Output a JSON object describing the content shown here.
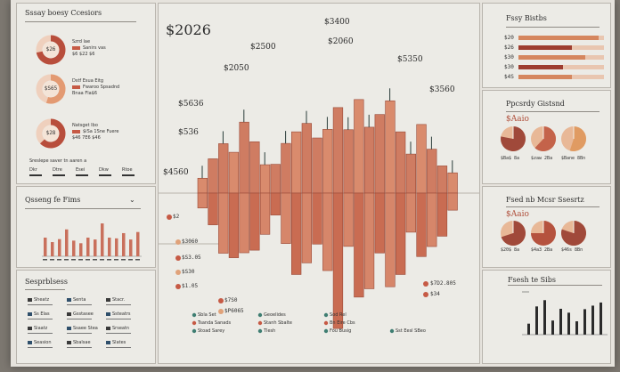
{
  "colors": {
    "accent": "#c65a45",
    "accent_dark": "#8e3a2b",
    "accent_light": "#e7a080",
    "peach": "#e9a97c",
    "teal": "#3f7e72",
    "ink": "#2b2b2b",
    "rule": "#8e8a84"
  },
  "left_top": {
    "title": "Sssay boesy Ccesiors",
    "donuts": [
      {
        "value": "$26",
        "legend": [
          "Szrd lae",
          "Sanirs vas",
          "$6 $22 $6"
        ],
        "share": 0.72,
        "color": "#b84e3c"
      },
      {
        "value": "$S65",
        "legend": [
          "Dstf Esua Eitg",
          "Fwaroo Spsadnd",
          "Bnaa Fla$6"
        ],
        "share": 0.55,
        "color": "#e39a72"
      },
      {
        "value": "$28",
        "legend": [
          "Natsget Ibo",
          "$iSa 1Sne Fuere",
          "$46 7E6 $46"
        ],
        "share": 0.63,
        "color": "#b84e3c"
      }
    ],
    "footer": "Sreslepe saver tn aaren a",
    "footer_cols": [
      "Dkr",
      "Dtre",
      "Esei",
      "Dkw",
      "Rtoe"
    ]
  },
  "left_mid": {
    "title": "Qsseng fe Fims",
    "icon": "dropdown-chevron-icon",
    "bars": [
      0.5,
      0.38,
      0.46,
      0.72,
      0.42,
      0.35,
      0.5,
      0.45,
      0.88,
      0.5,
      0.48,
      0.62,
      0.45,
      0.65
    ]
  },
  "left_bot": {
    "title": "Sesprblsess",
    "rows": [
      [
        "Sheatz",
        "Senta",
        "Stacr."
      ],
      [
        "Ss Elas",
        "Gsstasee",
        "Ssteatrs"
      ],
      [
        "Siaatz",
        "Ssaee Stea",
        "Srseatn"
      ],
      [
        "Seasion",
        "Sbalsae",
        "Slates"
      ]
    ]
  },
  "main": {
    "value_labels": [
      "$2026",
      "$3400",
      "$2500",
      "$2050",
      "$5636",
      "$2060",
      "$536",
      "$3560",
      "$5350",
      "$4560"
    ],
    "bars": [
      0.16,
      0.28,
      0.45,
      0.42,
      0.56,
      0.45,
      0.28,
      0.22,
      0.42,
      0.58,
      0.75,
      0.45,
      0.58,
      0.88,
      0.5,
      0.82,
      0.65,
      0.6,
      0.78,
      0.58,
      0.42,
      0.56,
      0.4,
      0.28,
      0.16
    ],
    "left_values": [
      "$2",
      "$3060",
      "$S3.05",
      "$S30",
      "$1.05",
      "$P6065",
      "$7S0"
    ],
    "right_values": [
      "$7D2.805",
      "$34"
    ],
    "legend": [
      [
        "Sbla Set",
        "Tsanda Sanads",
        "Stoad Sarey"
      ],
      [
        "Geoelides",
        "Stanh Sbalte",
        "Tlesh"
      ],
      [
        "Sod Rel",
        "Bn Eire Cbs",
        "Fou Busig"
      ],
      [
        "",
        "",
        "Sst Eesl SBeo"
      ]
    ]
  },
  "right_top": {
    "title": "Fssy Bistbs",
    "bars": [
      [
        "$20",
        0.94
      ],
      [
        "$26",
        0.62
      ],
      [
        "$30",
        0.78
      ],
      [
        "$30",
        0.52
      ],
      [
        "$4S",
        0.63
      ]
    ]
  },
  "right_mid": {
    "title": "Ppcsrdy Gistsnd",
    "value": "$Aaio",
    "pies": [
      {
        "label": "$Ba$ 8a",
        "share": 0.78,
        "color": "#a0493a"
      },
      {
        "label": "$zaw 2Ba",
        "share": 0.62,
        "color": "#c4634a"
      },
      {
        "label": "$Bane 8Bn",
        "share": 0.55,
        "color": "#e09b62"
      }
    ]
  },
  "right_low": {
    "title": "Fsed nb Mcsr Ssesrtz",
    "value": "$Aaio",
    "pies": [
      {
        "label": "$20$ 8a",
        "share": 0.7,
        "color": "#a0493a"
      },
      {
        "label": "$4a3 2Ba",
        "share": 0.75,
        "color": "#b5523e"
      },
      {
        "label": "$46s 8Bn",
        "share": 0.8,
        "color": "#a0493a"
      }
    ]
  },
  "right_bot": {
    "title": "Fsesh te Sibs",
    "bars": [
      0.28,
      0.72,
      0.88,
      0.36,
      0.66,
      0.56,
      0.34,
      0.65,
      0.74,
      0.82
    ]
  }
}
